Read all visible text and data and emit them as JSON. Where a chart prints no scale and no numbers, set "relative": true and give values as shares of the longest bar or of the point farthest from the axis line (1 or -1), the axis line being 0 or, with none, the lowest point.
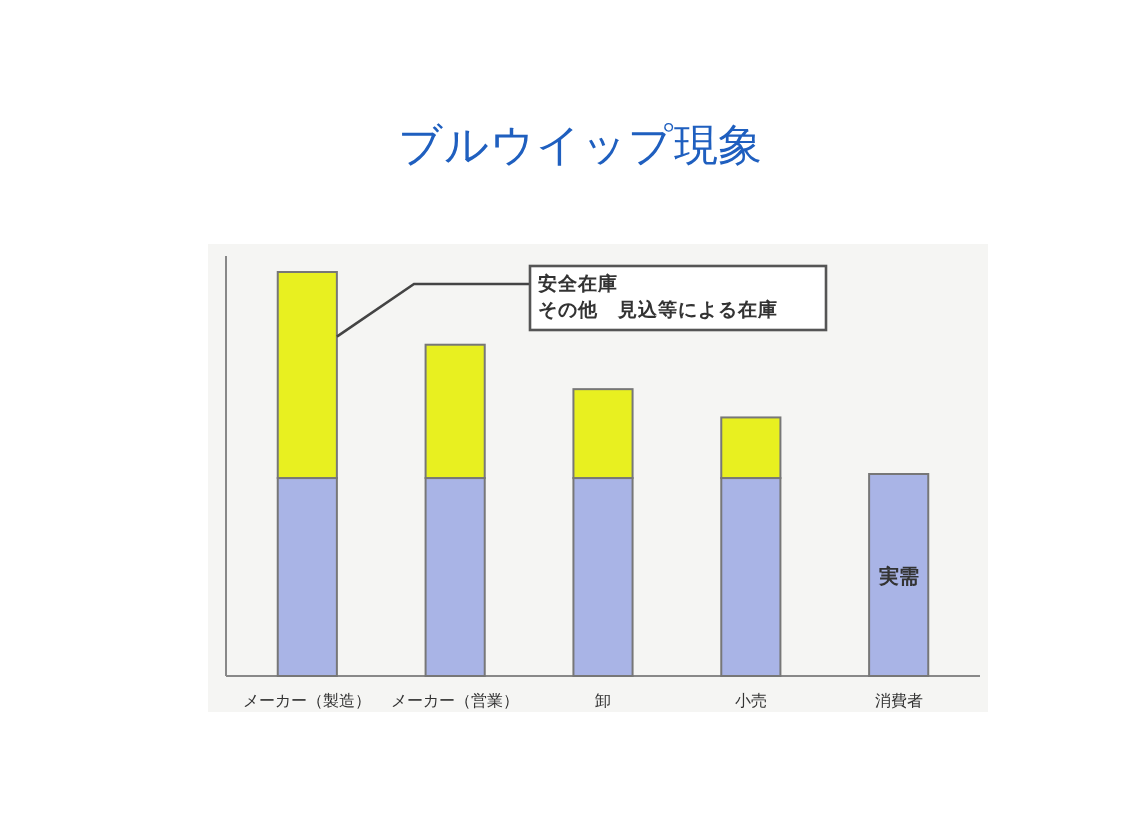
{
  "chart_data": {
    "type": "bar",
    "title": "ブルウイップ現象",
    "relative": true,
    "stacked": true,
    "tick_labels": "x",
    "categories": [
      "メーカー（製造）",
      "メーカー（営業）",
      "卸",
      "小売",
      "消費者"
    ],
    "series": [
      {
        "color": "#a9b4e6",
        "values": [
          0.49,
          0.49,
          0.49,
          0.49,
          0.5
        ]
      },
      {
        "color": "#e8f020",
        "values": [
          0.51,
          0.33,
          0.22,
          0.15,
          null
        ]
      }
    ],
    "annotations": [
      "安全在庫",
      "その他　見込等による在庫",
      "実需"
    ]
  }
}
